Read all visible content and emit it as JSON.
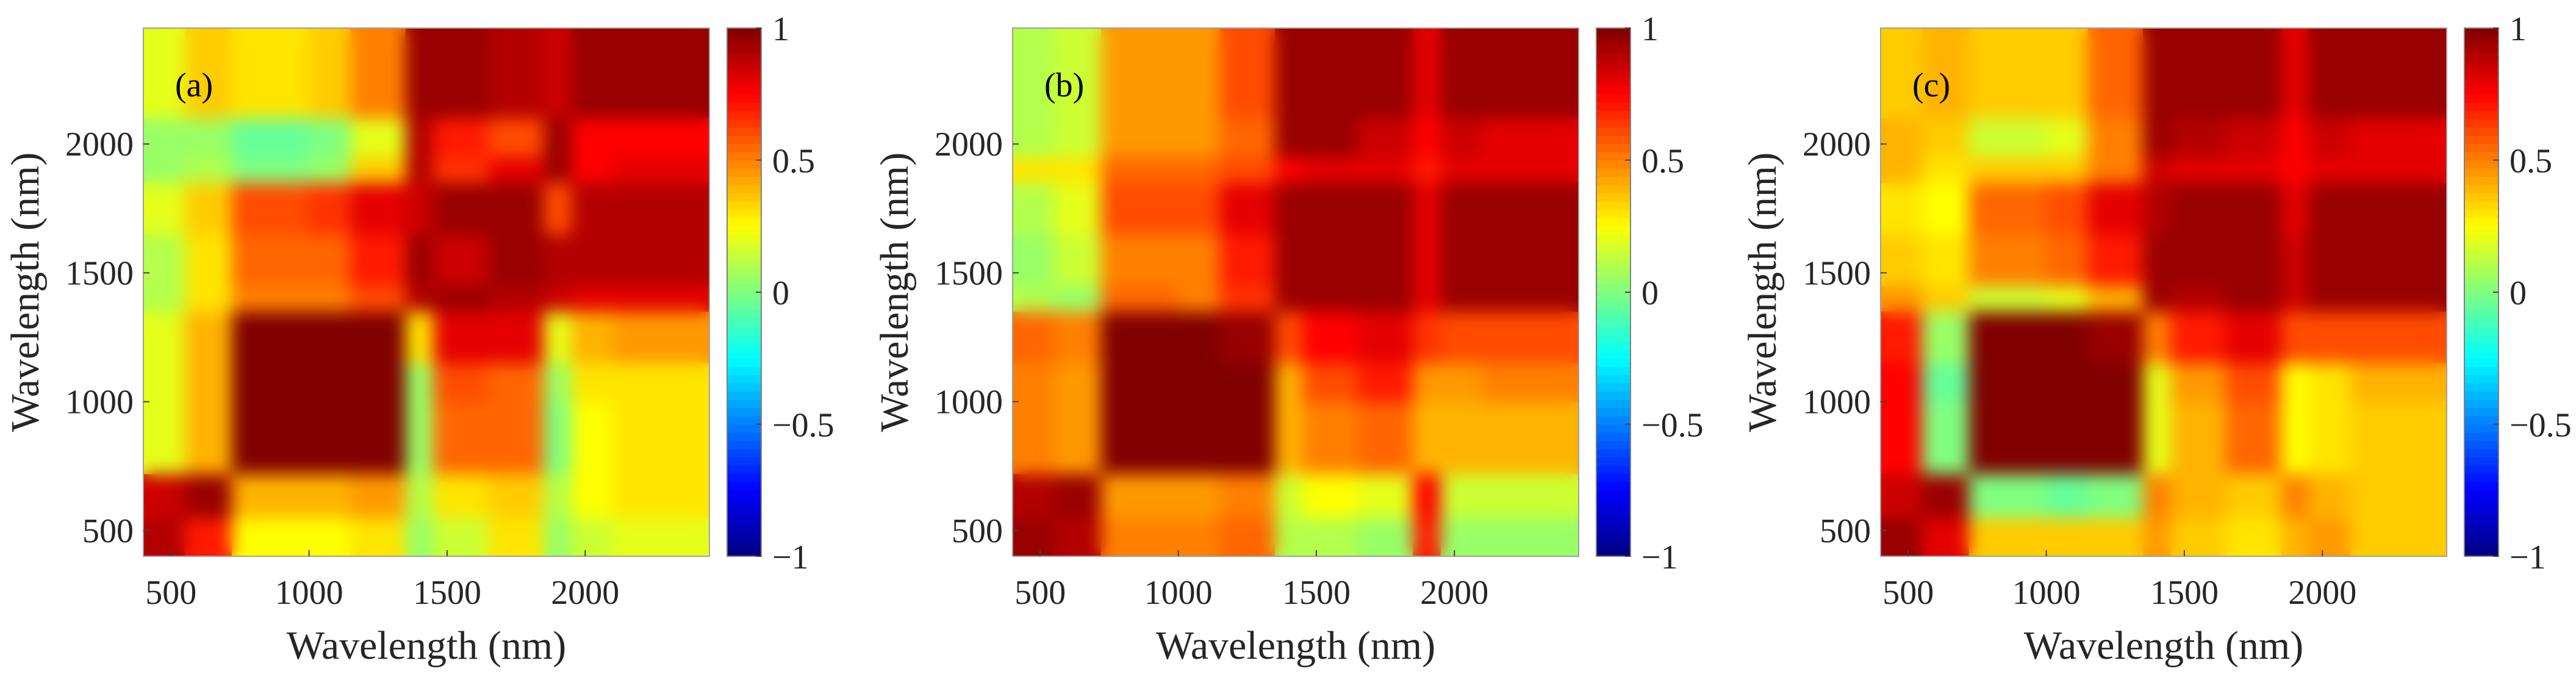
{
  "chart_data": [
    {
      "type": "heatmap",
      "panel_label": "(a)",
      "xlabel": "Wavelength (nm)",
      "ylabel": "Wavelength (nm)",
      "xlim": [
        400,
        2450
      ],
      "ylim": [
        400,
        2450
      ],
      "xticks": [
        500,
        1000,
        1500,
        2000
      ],
      "xtick_labels": [
        "500",
        "1000",
        "1500",
        "2000"
      ],
      "yticks": [
        500,
        1000,
        1500,
        2000
      ],
      "ytick_labels": [
        "500",
        "1000",
        "1500",
        "2000"
      ],
      "colorbar": {
        "range": [
          -1,
          1
        ],
        "ticks": [
          -1,
          -0.5,
          0,
          0.5,
          1
        ],
        "tick_labels": [
          "−1",
          "−0.5",
          "0",
          "0.5",
          "1"
        ],
        "colormap": "jet"
      },
      "band_edges_nm": [
        400,
        550,
        720,
        1000,
        1150,
        1350,
        1450,
        1650,
        1850,
        1950,
        2100,
        2450
      ],
      "values_rows_bottom_to_top": [
        [
          0.9,
          0.7,
          0.25,
          0.25,
          0.3,
          0.05,
          0.15,
          0.3,
          0.05,
          0.15,
          0.2
        ],
        [
          0.85,
          0.95,
          0.4,
          0.4,
          0.45,
          0.1,
          0.3,
          0.35,
          0.1,
          0.25,
          0.3
        ],
        [
          0.2,
          0.4,
          1,
          1,
          1,
          0.05,
          0.55,
          0.55,
          0.0,
          0.25,
          0.3
        ],
        [
          0.2,
          0.4,
          1,
          1,
          1,
          0.05,
          0.6,
          0.55,
          0.05,
          0.3,
          0.3
        ],
        [
          0.2,
          0.4,
          1,
          1,
          1,
          0.3,
          0.8,
          0.8,
          0.2,
          0.4,
          0.45
        ],
        [
          0.1,
          0.3,
          0.5,
          0.5,
          0.6,
          0.9,
          0.95,
          0.9,
          0.85,
          0.8,
          0.8
        ],
        [
          0.1,
          0.3,
          0.55,
          0.55,
          0.7,
          0.95,
          0.85,
          0.95,
          0.9,
          0.9,
          0.9
        ],
        [
          0.2,
          0.35,
          0.6,
          0.65,
          0.8,
          0.85,
          0.95,
          0.95,
          0.6,
          0.9,
          0.9
        ],
        [
          0.05,
          0.1,
          0.0,
          0.05,
          0.35,
          0.9,
          0.65,
          0.8,
          0.95,
          0.75,
          0.8
        ],
        [
          0.05,
          0.05,
          -0.05,
          0.0,
          0.2,
          0.9,
          0.7,
          0.6,
          0.95,
          0.75,
          0.75
        ],
        [
          0.2,
          0.35,
          0.3,
          0.35,
          0.5,
          0.95,
          0.95,
          0.9,
          0.85,
          0.95,
          0.95
        ]
      ]
    },
    {
      "type": "heatmap",
      "panel_label": "(b)",
      "xlabel": "Wavelength (nm)",
      "ylabel": "Wavelength (nm)",
      "xlim": [
        400,
        2450
      ],
      "ylim": [
        400,
        2450
      ],
      "xticks": [
        500,
        1000,
        1500,
        2000
      ],
      "xtick_labels": [
        "500",
        "1000",
        "1500",
        "2000"
      ],
      "yticks": [
        500,
        1000,
        1500,
        2000
      ],
      "ytick_labels": [
        "500",
        "1000",
        "1500",
        "2000"
      ],
      "colorbar": {
        "range": [
          -1,
          1
        ],
        "ticks": [
          -1,
          -0.5,
          0,
          0.5,
          1
        ],
        "tick_labels": [
          "−1",
          "−0.5",
          "0",
          "0.5",
          "1"
        ],
        "colormap": "jet"
      },
      "band_edges_nm": [
        400,
        550,
        720,
        1000,
        1150,
        1350,
        1450,
        1650,
        1850,
        1950,
        2100,
        2450
      ],
      "values_rows_bottom_to_top": [
        [
          0.95,
          0.9,
          0.5,
          0.5,
          0.55,
          0.1,
          0.1,
          0.05,
          0.7,
          0.05,
          0.05
        ],
        [
          0.9,
          0.95,
          0.45,
          0.45,
          0.5,
          0.15,
          0.25,
          0.2,
          0.75,
          0.15,
          0.15
        ],
        [
          0.5,
          0.45,
          1,
          1,
          1,
          0.4,
          0.5,
          0.55,
          0.4,
          0.4,
          0.4
        ],
        [
          0.5,
          0.45,
          1,
          1,
          1,
          0.4,
          0.6,
          0.7,
          0.45,
          0.45,
          0.5
        ],
        [
          0.55,
          0.5,
          1,
          1,
          0.95,
          0.6,
          0.75,
          0.8,
          0.65,
          0.6,
          0.6
        ],
        [
          0.1,
          0.05,
          0.55,
          0.5,
          0.65,
          0.95,
          0.95,
          0.95,
          0.8,
          0.95,
          0.95
        ],
        [
          0.05,
          0.15,
          0.5,
          0.5,
          0.7,
          0.95,
          0.95,
          0.95,
          0.8,
          0.95,
          0.95
        ],
        [
          0.1,
          0.2,
          0.6,
          0.6,
          0.8,
          0.95,
          0.95,
          0.95,
          0.8,
          0.95,
          0.95
        ],
        [
          0.3,
          0.3,
          0.55,
          0.55,
          0.6,
          0.75,
          0.8,
          0.8,
          0.7,
          0.8,
          0.8
        ],
        [
          0.1,
          0.15,
          0.45,
          0.45,
          0.55,
          0.95,
          0.95,
          0.85,
          0.75,
          0.85,
          0.8
        ],
        [
          0.1,
          0.15,
          0.45,
          0.45,
          0.6,
          0.95,
          0.95,
          0.95,
          0.8,
          0.95,
          0.95
        ]
      ]
    },
    {
      "type": "heatmap",
      "panel_label": "(c)",
      "xlabel": "Wavelength (nm)",
      "ylabel": "Wavelength (nm)",
      "xlim": [
        400,
        2450
      ],
      "ylim": [
        400,
        2450
      ],
      "xticks": [
        500,
        1000,
        1500,
        2000
      ],
      "xtick_labels": [
        "500",
        "1000",
        "1500",
        "2000"
      ],
      "yticks": [
        500,
        1000,
        1500,
        2000
      ],
      "ytick_labels": [
        "500",
        "1000",
        "1500",
        "2000"
      ],
      "colorbar": {
        "range": [
          -1,
          1
        ],
        "ticks": [
          -1,
          -0.5,
          0,
          0.5,
          1
        ],
        "tick_labels": [
          "−1",
          "−0.5",
          "0",
          "0.5",
          "1"
        ],
        "colormap": "jet"
      },
      "band_edges_nm": [
        400,
        550,
        720,
        1000,
        1150,
        1350,
        1450,
        1650,
        1850,
        1950,
        2100,
        2450
      ],
      "values_rows_bottom_to_top": [
        [
          0.95,
          0.8,
          0.35,
          0.35,
          0.35,
          0.45,
          0.35,
          0.3,
          0.4,
          0.45,
          0.35
        ],
        [
          0.85,
          0.95,
          0.0,
          -0.05,
          0.0,
          0.5,
          0.4,
          0.35,
          0.5,
          0.4,
          0.35
        ],
        [
          0.75,
          0.0,
          1,
          1,
          1,
          0.2,
          0.4,
          0.55,
          0.25,
          0.3,
          0.35
        ],
        [
          0.75,
          -0.05,
          1,
          1,
          1,
          0.2,
          0.45,
          0.6,
          0.25,
          0.3,
          0.4
        ],
        [
          0.7,
          0.05,
          1,
          1,
          0.95,
          0.5,
          0.7,
          0.8,
          0.6,
          0.6,
          0.6
        ],
        [
          0.45,
          0.35,
          0.15,
          0.2,
          0.4,
          0.95,
          0.9,
          0.95,
          0.85,
          0.95,
          0.95
        ],
        [
          0.35,
          0.3,
          0.5,
          0.55,
          0.7,
          0.95,
          0.95,
          0.95,
          0.85,
          0.95,
          0.95
        ],
        [
          0.3,
          0.25,
          0.55,
          0.6,
          0.8,
          0.9,
          0.95,
          0.95,
          0.8,
          0.95,
          0.95
        ],
        [
          0.4,
          0.3,
          0.35,
          0.35,
          0.5,
          0.85,
          0.8,
          0.8,
          0.75,
          0.8,
          0.8
        ],
        [
          0.4,
          0.35,
          0.15,
          0.2,
          0.5,
          0.95,
          0.9,
          0.85,
          0.75,
          0.85,
          0.8
        ],
        [
          0.35,
          0.4,
          0.35,
          0.35,
          0.55,
          0.95,
          0.95,
          0.95,
          0.8,
          0.95,
          0.95
        ]
      ]
    }
  ]
}
